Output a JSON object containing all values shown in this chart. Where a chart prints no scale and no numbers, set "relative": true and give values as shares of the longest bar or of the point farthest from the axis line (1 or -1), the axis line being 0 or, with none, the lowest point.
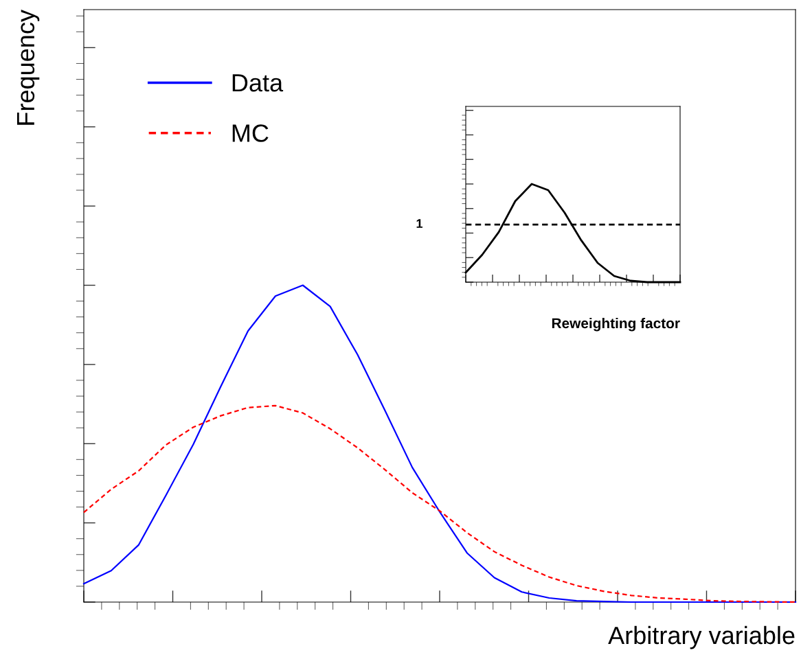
{
  "chart_data": [
    {
      "type": "line",
      "xlabel": "Arbitrary variable",
      "ylabel": "Frequency",
      "relative": true,
      "tick_labels": false,
      "legend": "top left",
      "grid": false,
      "categories": [
        null,
        null,
        null,
        null,
        null,
        null,
        null,
        null,
        null,
        null,
        null,
        null,
        null,
        null,
        null,
        null,
        null,
        null,
        null,
        null,
        null,
        null,
        null,
        null,
        null,
        null,
        null
      ],
      "series": [
        {
          "name": "Data",
          "color": "#0000ff",
          "line_style": "solid",
          "values": [
            0.058,
            0.099,
            0.18,
            0.337,
            0.498,
            0.68,
            0.856,
            0.966,
            1,
            0.933,
            0.781,
            0.605,
            0.425,
            0.285,
            0.155,
            0.077,
            0.032,
            0.013,
            0.004,
            0.002,
            0,
            0,
            0,
            0,
            0,
            0,
            0
          ]
        },
        {
          "name": "MC",
          "color": "#ff0000",
          "line_style": "dashed",
          "values": [
            0.283,
            0.356,
            0.414,
            0.496,
            0.552,
            0.588,
            0.614,
            0.62,
            0.597,
            0.547,
            0.487,
            0.418,
            0.345,
            0.288,
            0.219,
            0.159,
            0.116,
            0.079,
            0.052,
            0.034,
            0.021,
            0.013,
            0.009,
            0.004,
            0.002,
            0.001,
            0
          ]
        }
      ]
    },
    {
      "type": "line",
      "xlabel": "Reweighting factor",
      "relative": true,
      "tick_labels": false,
      "grid": false,
      "categories": [
        null,
        null,
        null,
        null,
        null,
        null,
        null,
        null,
        null,
        null,
        null,
        null,
        null,
        null
      ],
      "series": [
        {
          "color": "#000000",
          "line_style": "solid",
          "values": [
            0.098,
            0.28,
            0.51,
            0.825,
            1,
            0.937,
            0.706,
            0.427,
            0.196,
            0.063,
            0.014,
            0,
            0,
            0
          ]
        }
      ],
      "ref_lines": [
        {
          "axis": "y",
          "value": 0.587,
          "label": "1",
          "color": "#000000",
          "line_style": "dashed"
        }
      ]
    }
  ]
}
